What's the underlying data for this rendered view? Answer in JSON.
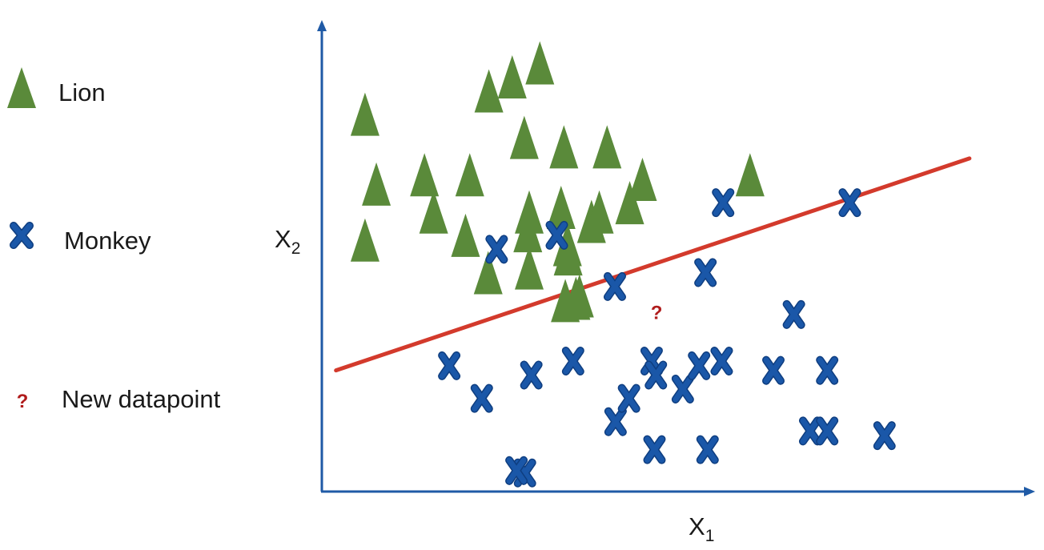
{
  "chart_data": {
    "type": "scatter",
    "xlabel": "X",
    "xlabel_sub": "1",
    "ylabel": "X",
    "ylabel_sub": "2",
    "legend": {
      "placement": "left",
      "entries": [
        {
          "name": "Lion",
          "marker": "triangle"
        },
        {
          "name": "Monkey",
          "marker": "x"
        },
        {
          "name": "New datapoint",
          "marker": "question"
        }
      ]
    },
    "grid": false,
    "xlim": [
      0,
      100
    ],
    "ylim": [
      0,
      100
    ],
    "series": [
      {
        "name": "Lion",
        "marker": "triangle",
        "color": "#5a8a3a",
        "points": [
          [
            6.1,
            81.0
          ],
          [
            7.7,
            66.0
          ],
          [
            6.1,
            54.0
          ],
          [
            14.5,
            68.0
          ],
          [
            15.8,
            60.0
          ],
          [
            20.9,
            68.0
          ],
          [
            23.6,
            86.0
          ],
          [
            26.9,
            89.0
          ],
          [
            23.5,
            47.0
          ],
          [
            20.3,
            55.0
          ],
          [
            29.1,
            56.0
          ],
          [
            28.6,
            76.0
          ],
          [
            29.3,
            48.0
          ],
          [
            33.8,
            61.0
          ],
          [
            34.4,
            41.0
          ],
          [
            36.4,
            42.0
          ],
          [
            35.9,
            41.5
          ],
          [
            30.8,
            92.0
          ],
          [
            34.2,
            74.0
          ],
          [
            29.3,
            60.0
          ],
          [
            38.1,
            58.0
          ],
          [
            34.8,
            51.0
          ],
          [
            39.2,
            60.0
          ],
          [
            40.3,
            74.0
          ],
          [
            43.5,
            62.0
          ],
          [
            45.3,
            67.0
          ],
          [
            34.7,
            53.0
          ],
          [
            60.5,
            68.0
          ]
        ]
      },
      {
        "name": "Monkey",
        "marker": "x",
        "color": "#1a57a8",
        "points": [
          [
            33.2,
            55.0
          ],
          [
            24.7,
            52.0
          ],
          [
            41.4,
            44.0
          ],
          [
            54.2,
            47.0
          ],
          [
            74.6,
            62.0
          ],
          [
            66.7,
            38.0
          ],
          [
            18.0,
            27.0
          ],
          [
            22.6,
            20.0
          ],
          [
            29.6,
            25.0
          ],
          [
            35.5,
            28.0
          ],
          [
            41.5,
            15.0
          ],
          [
            43.4,
            20.0
          ],
          [
            46.6,
            28.0
          ],
          [
            47.2,
            25.0
          ],
          [
            51.0,
            22.0
          ],
          [
            53.3,
            27.0
          ],
          [
            56.5,
            28.0
          ],
          [
            63.8,
            26.0
          ],
          [
            71.4,
            26.0
          ],
          [
            69.0,
            13.0
          ],
          [
            71.4,
            13.0
          ],
          [
            79.5,
            12.0
          ],
          [
            47.0,
            9.0
          ],
          [
            54.5,
            9.0
          ],
          [
            28.7,
            4.0
          ],
          [
            27.5,
            4.5
          ],
          [
            56.7,
            62.0
          ]
        ]
      }
    ],
    "new_datapoint": {
      "name": "New datapoint",
      "label": "?",
      "x": 47.3,
      "y": 37.0
    },
    "decision_boundary": {
      "x": [
        2.0,
        91.5
      ],
      "y": [
        26.0,
        71.5
      ]
    }
  },
  "colors": {
    "axis": "#1f5aa6",
    "lion": "#5a8a3a",
    "monkey": "#1a57a8",
    "boundary": "#d33a2c",
    "question": "#b01c1c"
  }
}
